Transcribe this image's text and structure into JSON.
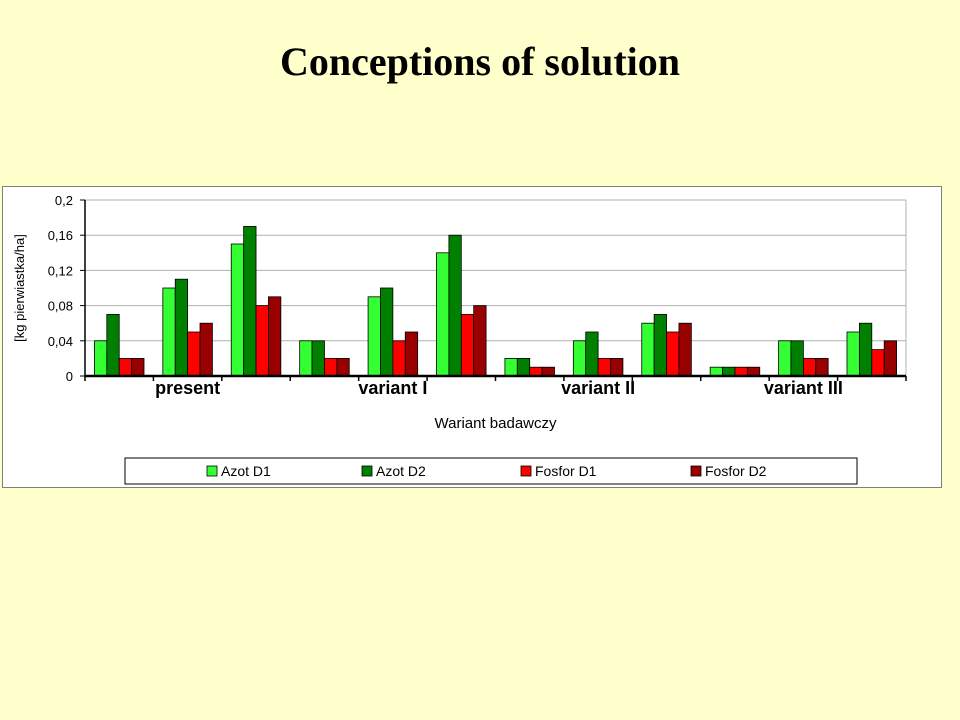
{
  "slide": {
    "title": "Conceptions of solution"
  },
  "chart_data": {
    "type": "bar",
    "title": "",
    "xlabel": "Wariant badawczy",
    "ylabel": "[kg pierwiastka/ha]",
    "ylim": [
      0,
      0.2
    ],
    "yticks": [
      "0",
      "0,04",
      "0,08",
      "0,12",
      "0,16",
      "0,2"
    ],
    "ytick_values": [
      0,
      0.04,
      0.08,
      0.12,
      0.16,
      0.2
    ],
    "groups": [
      "present",
      "variant I",
      "variant II",
      "variant III"
    ],
    "categories_per_group": 3,
    "grid": true,
    "legend_position": "bottom",
    "series": [
      {
        "name": "Azot D1",
        "color": "#33FF33",
        "values": [
          0.04,
          0.1,
          0.15,
          0.04,
          0.09,
          0.14,
          0.02,
          0.04,
          0.06,
          0.01,
          0.04,
          0.05
        ]
      },
      {
        "name": "Azot D2",
        "color": "#008000",
        "values": [
          0.07,
          0.11,
          0.17,
          0.04,
          0.1,
          0.16,
          0.02,
          0.05,
          0.07,
          0.01,
          0.04,
          0.06
        ]
      },
      {
        "name": "Fosfor D1",
        "color": "#FF0000",
        "values": [
          0.02,
          0.05,
          0.08,
          0.02,
          0.04,
          0.07,
          0.01,
          0.02,
          0.05,
          0.01,
          0.02,
          0.03
        ]
      },
      {
        "name": "Fosfor D2",
        "color": "#990000",
        "values": [
          0.02,
          0.06,
          0.09,
          0.02,
          0.05,
          0.08,
          0.01,
          0.02,
          0.06,
          0.01,
          0.02,
          0.04
        ]
      }
    ]
  }
}
